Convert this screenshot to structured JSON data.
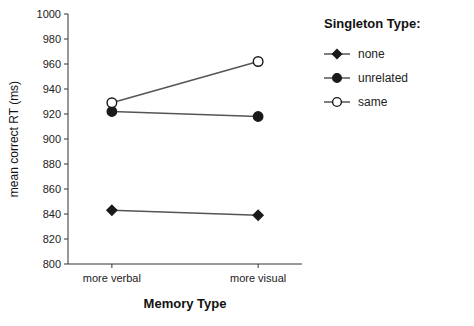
{
  "chart_data": {
    "type": "line",
    "categories": [
      "more verbal",
      "more visual"
    ],
    "series": [
      {
        "name": "none",
        "color": "#555555",
        "marker": "diamond",
        "values": [
          843,
          839
        ]
      },
      {
        "name": "unrelated",
        "color": "#555555",
        "marker": "circle",
        "values": [
          922,
          918
        ]
      },
      {
        "name": "same",
        "color": "#555555",
        "marker": "open-circle",
        "values": [
          929,
          962
        ]
      }
    ],
    "x_label": "Memory Type",
    "y_label": "mean correct RT (ms)",
    "legend_title": "Singleton Type:",
    "legend": "right",
    "grid": false,
    "ylim": [
      800,
      1000
    ],
    "yticks": [
      800,
      820,
      840,
      860,
      880,
      900,
      920,
      940,
      960,
      980,
      1000
    ]
  }
}
